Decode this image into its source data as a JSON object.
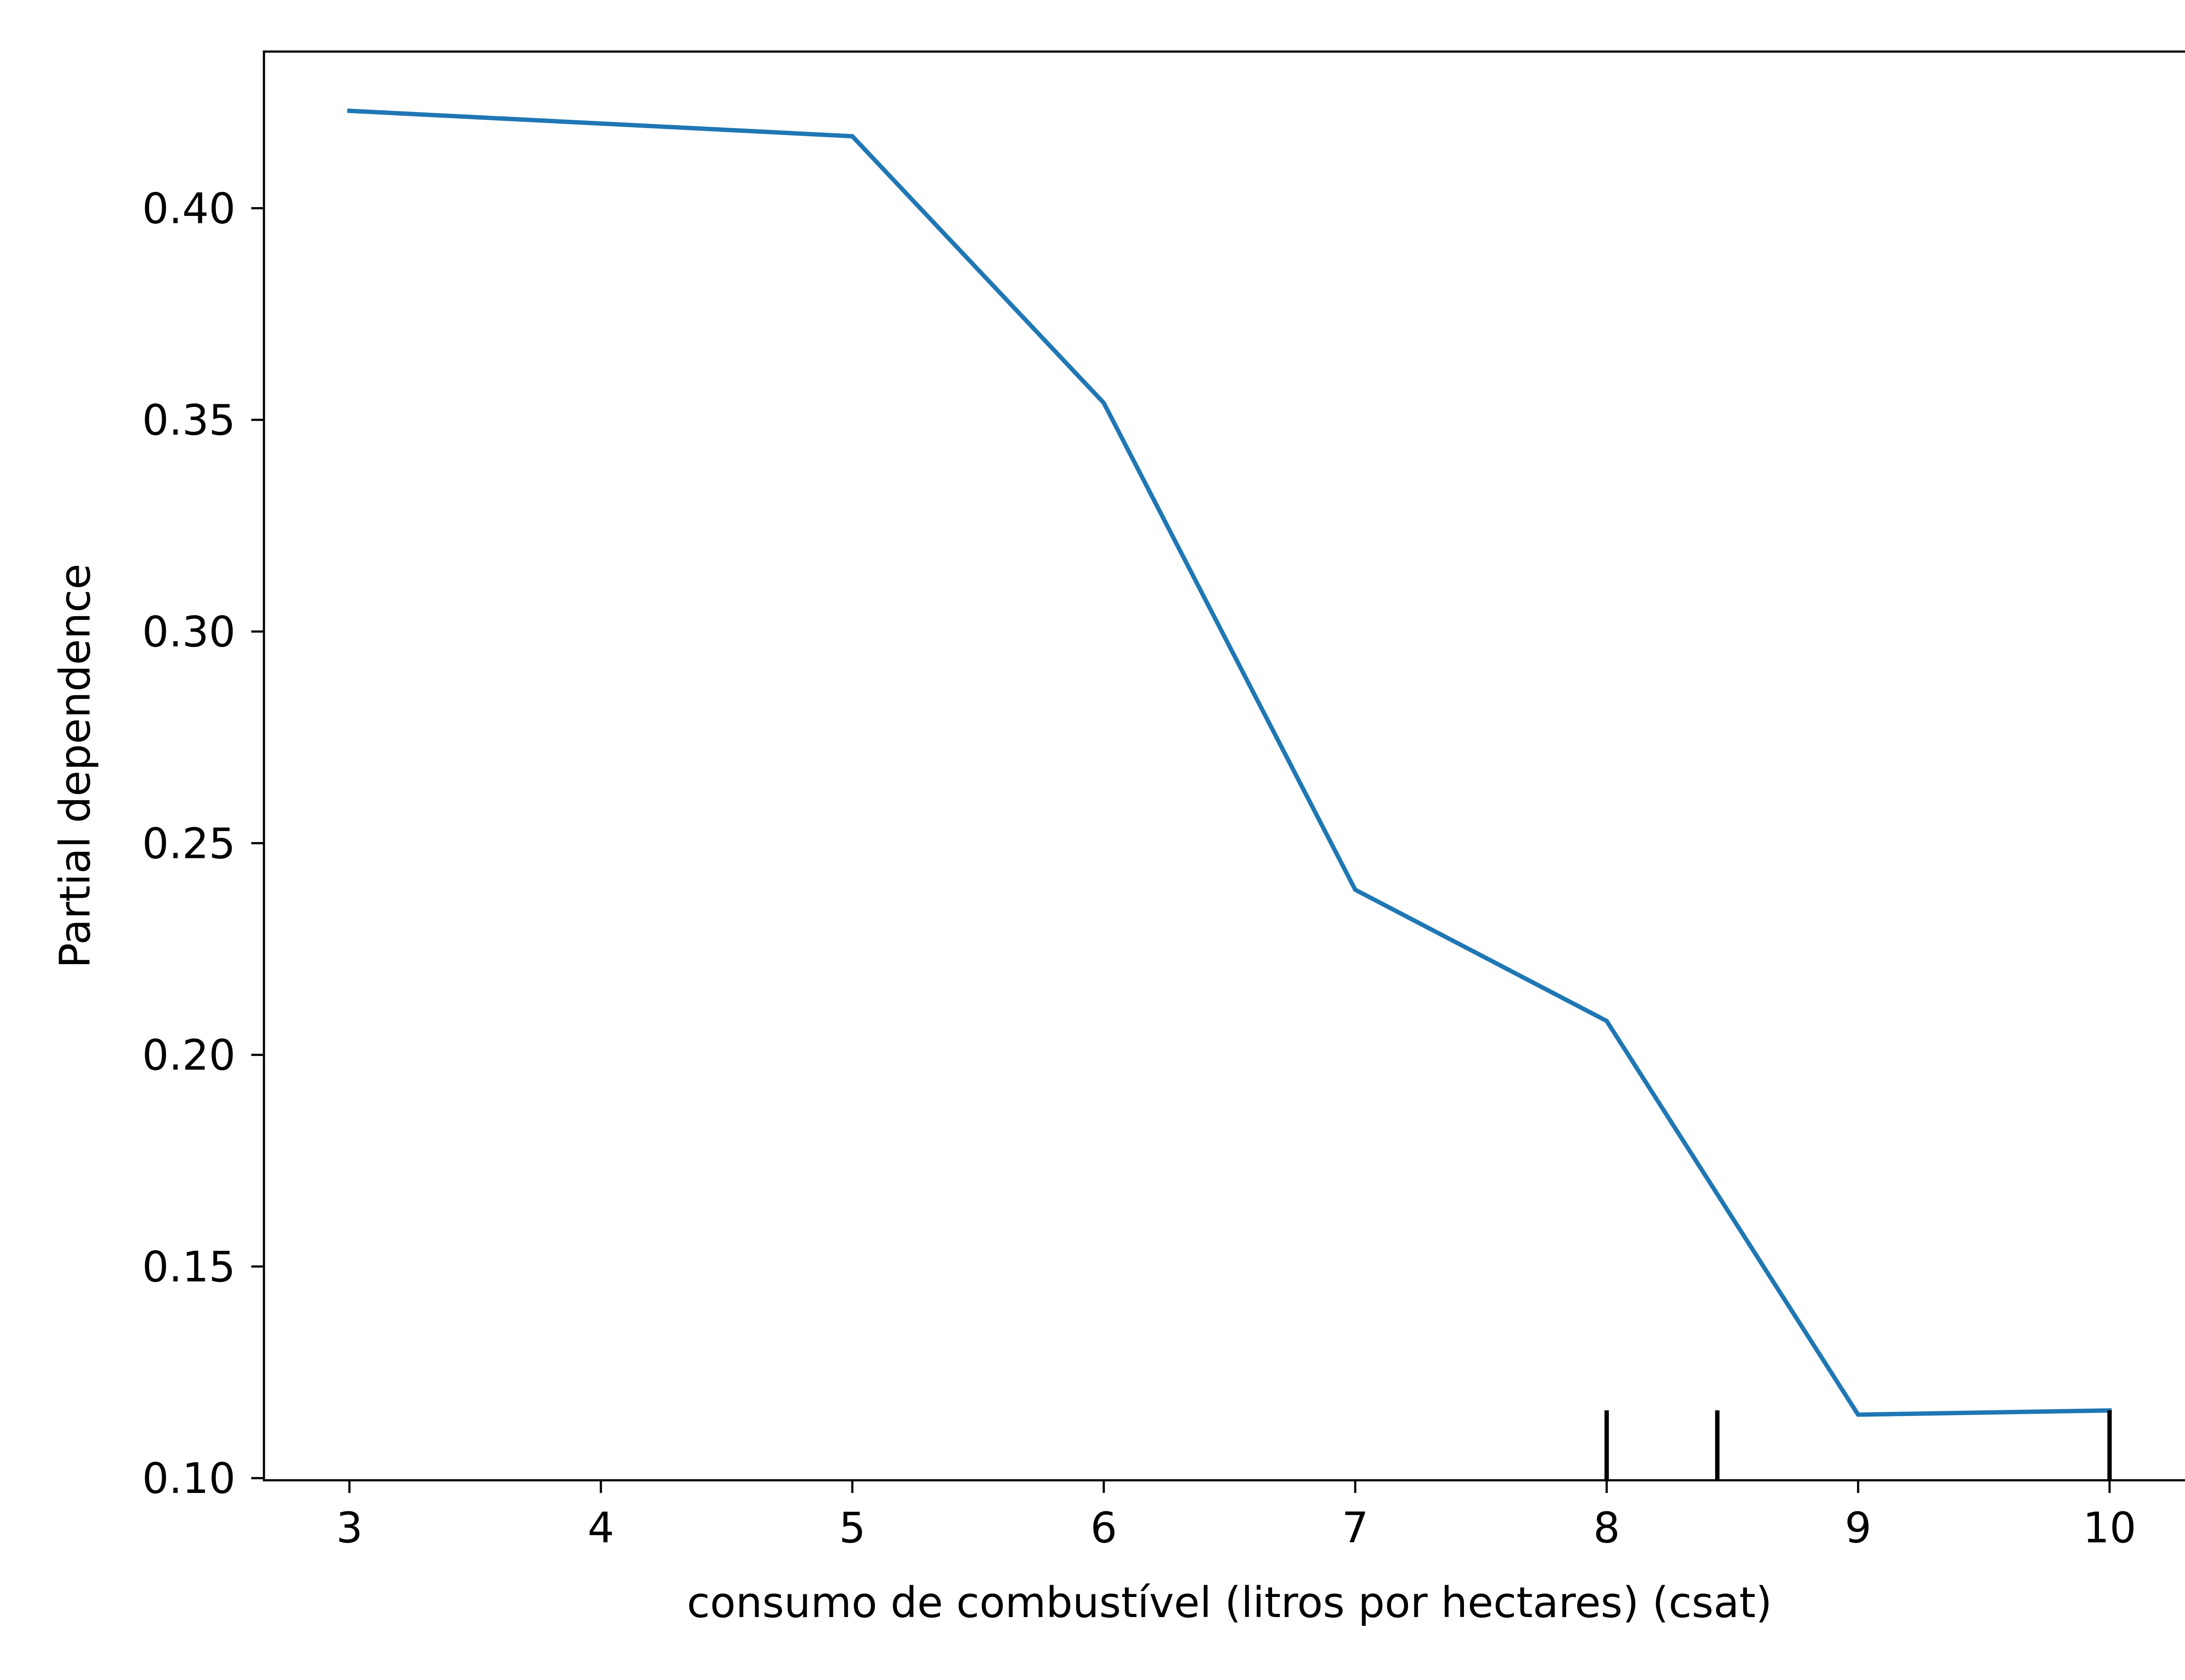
{
  "chart_data": {
    "type": "line",
    "title": "",
    "xlabel": "consumo de combustível (litros por hectares) (csat)",
    "ylabel": "Partial dependence",
    "xlim": [
      2.66,
      10.34
    ],
    "ylim": [
      0.0995,
      0.437
    ],
    "x_ticks": [
      3,
      4,
      5,
      6,
      7,
      8,
      9,
      10
    ],
    "x_tick_labels": [
      "3",
      "4",
      "5",
      "6",
      "7",
      "8",
      "9",
      "10"
    ],
    "y_ticks": [
      0.1,
      0.15,
      0.2,
      0.25,
      0.3,
      0.35,
      0.4
    ],
    "y_tick_labels": [
      "0.10",
      "0.15",
      "0.20",
      "0.25",
      "0.30",
      "0.35",
      "0.40"
    ],
    "grid": false,
    "series": [
      {
        "color": "#1f77b4",
        "x": [
          3,
          5,
          6,
          7,
          8,
          9,
          10
        ],
        "y": [
          0.423,
          0.417,
          0.354,
          0.239,
          0.208,
          0.115,
          0.116
        ]
      }
    ],
    "rug": {
      "color": "#000000",
      "x": [
        8,
        8.44,
        10
      ]
    }
  }
}
